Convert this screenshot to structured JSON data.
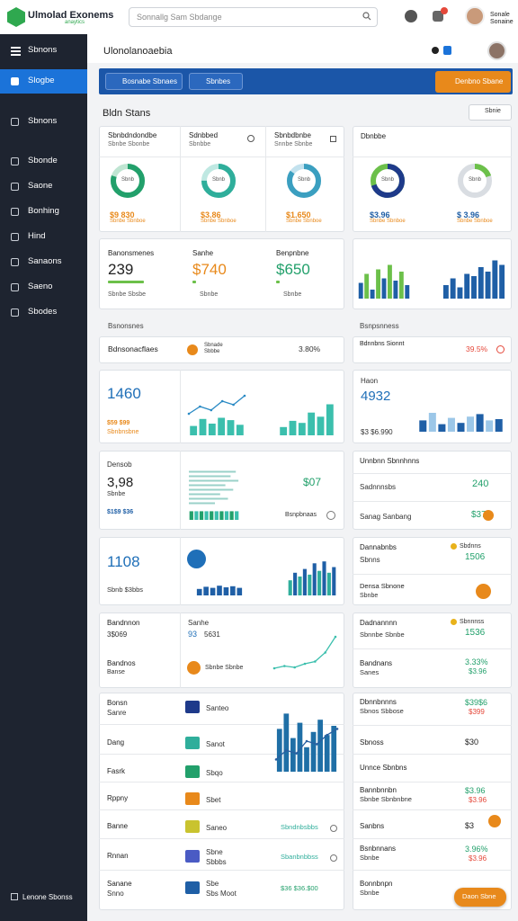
{
  "topbar": {
    "brand": "Ulmolad Exonems",
    "brand_sub": "anaytics",
    "search": "Sonnallg Sam Sbdange",
    "user": "Sonale Sonaine"
  },
  "sidebar": {
    "items": [
      "Sbnons",
      "Slogbe",
      "Sbnons",
      "Sbonde",
      "Saone",
      "Bonhing",
      "Hind",
      "Sanaons",
      "Saeno",
      "Sbodes"
    ],
    "footer": "Lenone Sbonss"
  },
  "header": {
    "title": "Ulonolanoaebia"
  },
  "toolbar": {
    "filters": [
      "Bosnabe Sbnaes",
      "Sbnbes"
    ],
    "action": "Denbno Sbane"
  },
  "overview": {
    "title": "Bldn Stans",
    "button": "Sbnie",
    "side_label": "Dbnbbe"
  },
  "donuts": [
    {
      "label": "Sbnbdndondbe",
      "sub": "Sbnbe Sbonbe",
      "center": "Sbnb",
      "value": "$9 830",
      "caption": "Sbnbe Sbnboe",
      "pct": 80,
      "color": "#22a06b",
      "track": "#bfe5d2"
    },
    {
      "label": "Sdnbbed",
      "sub": "Sbnbbe",
      "center": "Sbnb",
      "value": "$3.86",
      "caption": "Sbnbe Sbnboe",
      "pct": 75,
      "color": "#2fae9b",
      "track": "#bfe8e2"
    },
    {
      "label": "Sbnbdbnbe",
      "sub": "Snnbe Sbnbe",
      "center": "Sbnb",
      "value": "$1.650",
      "caption": "Sbnbe Sbnboe",
      "pct": 85,
      "color": "#3b9fc0",
      "track": "#c3e2ee"
    },
    {
      "center": "Sbnb",
      "value": "$3.96",
      "caption": "Sbnbe Sbnboe",
      "pct": 70,
      "color": "#1e3a8a",
      "track": "#6cc04a"
    },
    {
      "center": "Sbnb",
      "value": "$ 3.96",
      "caption": "Sbnbe Sbnboe",
      "pct": 20,
      "color": "#6cc04a",
      "track": "#d9dde2"
    }
  ],
  "stats": [
    {
      "label": "Banonsmenes",
      "value": "239",
      "caption": "Sbnbe Sbsbe",
      "color": "#222222"
    },
    {
      "label": "Sanhe",
      "value": "$740",
      "caption": "Sbnbe",
      "color": "#e8891b"
    },
    {
      "label": "Benpnbne",
      "value": "$650",
      "caption": "Sbnbe",
      "color": "#22a06b"
    }
  ],
  "sections": [
    "Bsnonsnes",
    "Bsnpsnness"
  ],
  "strip": {
    "label": "Bdnsonacflaes",
    "item": "Sbnade Sbbbe",
    "value": "3.80%",
    "side_label": "Bdnnbns Sionnt",
    "side_value": "39.5%"
  },
  "panels": {
    "p1": {
      "value": "1460",
      "sub": "$59 $99 ",
      "sub2": "Sbnbnsbne",
      "side_label": "Haon",
      "side_value": "4932",
      "side_sub": "$3 $6.990"
    },
    "p2": {
      "label": "Densob",
      "value": "3,98",
      "sub": "Sbnbe",
      "sub2": "$1$9 $36 ",
      "value2": "$07",
      "caption": "Bsnpbnaas",
      "side_title": "Unnbnn Sbnnhnns",
      "side_rows": [
        {
          "label": "Sadnnnsbs",
          "value": "240"
        },
        {
          "label": "Sanag Sanbang",
          "value": "$37"
        }
      ]
    },
    "p3": {
      "value": "1108",
      "sub": "Sbnb $3bbs",
      "side_rows": [
        {
          "label": "Dannabnbs",
          "sub": "Sbnns",
          "tag": "Sbdnns",
          "value": "1506"
        },
        {
          "label": "Densa Sbnone",
          "sub": "Sbnbe"
        }
      ]
    },
    "p4": {
      "rows": [
        {
          "label": "Bandnnon",
          "value": "3$069"
        },
        {
          "label": "Bandnos",
          "sub": "Banse"
        }
      ],
      "mid_label": "Sanhe",
      "mid_value": "93",
      "mid_sub": "5631",
      "mid_caption": "Sbnbe Sbnbe",
      "side_rows": [
        {
          "label": "Dadnannnn",
          "sub": "Sbnnbe Sbnbe",
          "tag": "Sbnnnss",
          "value": "1536"
        },
        {
          "label": "Bandnans",
          "sub": "Sanes",
          "value": "3.33%",
          "value2": "$3.96"
        }
      ]
    }
  },
  "table": {
    "rows": [
      {
        "name": "Bonsn",
        "sub": "Sanre",
        "item": "Santeo"
      },
      {
        "name": "Dang",
        "item": "Sanot"
      },
      {
        "name": "Fasrk",
        "item": "Sbqo"
      },
      {
        "name": "Rppny",
        "item": "Sbet"
      },
      {
        "name": "Banne",
        "item": "Saneo",
        "extra": "Sbndnbsbbs"
      },
      {
        "name": "Rnnan",
        "item": "Sbne",
        "item_sub": "Sbbbs",
        "extra": "Sbanbnbbss"
      },
      {
        "name": "Sanane",
        "sub": "Snno",
        "item": "Sbe",
        "item_sub": "Sbs Moot",
        "extra": "$36 $36.$00"
      }
    ]
  },
  "side_list": {
    "rows": [
      {
        "label": "Dbnnbnnns",
        "sub": "Sbnos Sbbose",
        "value": "$39$6",
        "value2": "$399"
      },
      {
        "label": "Sbnoss",
        "value": "$30"
      },
      {
        "header": "Unnce Sbnbns"
      },
      {
        "label": "Bannbnnbn",
        "sub": "Sbnbe Sbnbnbne",
        "value": "$3.96",
        "value2": "$3.96"
      },
      {
        "label": "Sanbns",
        "value": "$3"
      },
      {
        "label": "Bsnbnnans",
        "sub": "Sbnbe",
        "value": "3.96%",
        "value2": "$3.96"
      },
      {
        "label": "Bonnbnpn",
        "sub": "Sbnbe"
      }
    ],
    "button": "Daon Sbne"
  },
  "charts": [
    {
      "type": "bar",
      "ylim": [
        0,
        100
      ],
      "values": [
        35,
        55,
        20,
        65,
        45,
        75,
        40,
        60,
        30
      ],
      "colors": [
        "#1f5fa6",
        "#6cc04a",
        "#1f5fa6",
        "#6cc04a",
        "#1f5fa6",
        "#6cc04a",
        "#1f5fa6",
        "#6cc04a",
        "#1f5fa6"
      ]
    },
    {
      "type": "bar",
      "ylim": [
        0,
        100
      ],
      "values": [
        30,
        45,
        25,
        55,
        50,
        70,
        60,
        85,
        75
      ],
      "color": "#1f5fa6"
    },
    {
      "type": "line",
      "ylim": [
        0,
        100
      ],
      "values": [
        20,
        40,
        30,
        55,
        45,
        70
      ],
      "color": "#2a8ac4"
    },
    {
      "type": "bar",
      "ylim": [
        0,
        100
      ],
      "values": [
        40,
        70,
        50,
        75,
        65,
        45
      ],
      "color": "#3bbfad"
    },
    {
      "type": "bar",
      "ylim": [
        0,
        100
      ],
      "values": [
        20,
        35,
        30,
        55,
        45,
        75
      ],
      "color": "#3bbfad"
    },
    {
      "type": "bar",
      "ylim": [
        0,
        100
      ],
      "values": [
        45,
        75,
        30,
        55,
        35,
        60,
        70,
        45,
        50
      ],
      "colors": [
        "#1f5fa6",
        "#9cc7e8",
        "#1f5fa6",
        "#9cc7e8",
        "#1f5fa6",
        "#9cc7e8",
        "#1f5fa6",
        "#9cc7e8",
        "#1f5fa6"
      ]
    },
    {
      "type": "hbar",
      "ylim": [
        0,
        100
      ],
      "values": [
        90,
        80,
        95,
        70,
        85,
        60,
        75,
        50
      ],
      "color": "#9ad1c9"
    },
    {
      "type": "bar",
      "ylim": [
        0,
        100
      ],
      "values": [
        80,
        80,
        80,
        80,
        80,
        80,
        80,
        80,
        80,
        80
      ],
      "colors": [
        "#22a06b",
        "#3bbfad",
        "#22a06b",
        "#3bbfad",
        "#22a06b",
        "#3bbfad",
        "#22a06b",
        "#3bbfad",
        "#22a06b",
        "#3bbfad"
      ]
    },
    {
      "type": "bar",
      "ylim": [
        0,
        100
      ],
      "values": [
        60,
        80,
        70,
        90,
        75,
        85,
        70
      ],
      "color": "#1f5fa6"
    },
    {
      "type": "bar",
      "ylim": [
        0,
        100
      ],
      "values": [
        40,
        60,
        50,
        70,
        55,
        85,
        65,
        90,
        60,
        75
      ],
      "colors": [
        "#2fae9b",
        "#1f5fa6",
        "#2fae9b",
        "#1f5fa6",
        "#2fae9b",
        "#1f5fa6",
        "#2fae9b",
        "#1f5fa6",
        "#2fae9b",
        "#1f5fa6"
      ]
    },
    {
      "type": "line",
      "ylim": [
        0,
        100
      ],
      "values": [
        10,
        15,
        12,
        20,
        25,
        45,
        80
      ],
      "color": "#3bbfad"
    },
    {
      "type": "bar",
      "ylim": [
        0,
        100
      ],
      "values": [
        70,
        95,
        55,
        80,
        40,
        65,
        85,
        60,
        75
      ],
      "color": "#1f6fa6"
    },
    {
      "type": "line",
      "ylim": [
        0,
        100
      ],
      "values": [
        20,
        35,
        30,
        50,
        45,
        60,
        70
      ],
      "color": "#2a5fa0"
    }
  ]
}
